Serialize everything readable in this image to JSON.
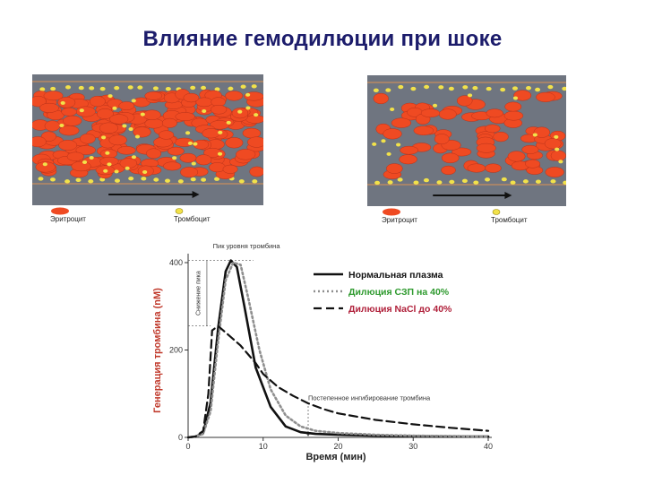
{
  "title": "Влияние гемодилюции при шоке",
  "vessels": [
    {
      "legend_rbc": "Эритроцит",
      "legend_plt": "Тромбоцит",
      "density": "high"
    },
    {
      "legend_rbc": "Эритроцит",
      "legend_plt": "Тромбоцит",
      "density": "low"
    }
  ],
  "colors": {
    "vessel_bg": "#6f7580",
    "vessel_wall": "#b98a63",
    "rbc": "#ef4a22",
    "platelet": "#f2e24a",
    "normal": "#111111",
    "ffp": "#8f8f8f",
    "nacl": "#111111",
    "ylabel": "#c0392b",
    "title": "#1c1c6b"
  },
  "chart_data": {
    "type": "line",
    "xlabel": "Время (мин)",
    "ylabel": "Генерация тромбина (nM)",
    "xlim": [
      0,
      40
    ],
    "ylim": [
      0,
      400
    ],
    "xticks": [
      0,
      10,
      20,
      30,
      40
    ],
    "yticks": [
      0,
      200,
      400
    ],
    "annotations": {
      "peak": "Пик уровня тромбина",
      "decrease": "Снижение пика",
      "inhibition": "Постепенное ингибирование тромбина"
    },
    "series": [
      {
        "name": "Нормальная плазма",
        "style": "solid",
        "x": [
          0,
          1,
          2,
          3,
          4,
          5,
          5.7,
          6.5,
          7.5,
          9,
          11,
          13,
          15,
          17,
          20,
          25,
          30,
          35,
          40
        ],
        "y": [
          0,
          2,
          10,
          80,
          250,
          380,
          405,
          390,
          300,
          160,
          70,
          25,
          12,
          8,
          6,
          4,
          3,
          2,
          2
        ]
      },
      {
        "name": "Дилюция СЗП на 40%",
        "style": "dotted",
        "x": [
          0,
          1,
          2,
          3,
          4,
          5,
          6,
          7,
          8,
          9.5,
          11,
          13,
          15,
          17,
          20,
          25,
          30,
          35,
          40
        ],
        "y": [
          0,
          2,
          8,
          60,
          220,
          360,
          400,
          395,
          320,
          200,
          110,
          50,
          25,
          15,
          10,
          6,
          4,
          3,
          2
        ]
      },
      {
        "name": "Дилюция  NaCl до 40%",
        "style": "dashed",
        "x": [
          0,
          1,
          2,
          2.7,
          3.2,
          4,
          5,
          6,
          7,
          8,
          9,
          10,
          12,
          14,
          16,
          18,
          20,
          25,
          30,
          35,
          40
        ],
        "y": [
          0,
          2,
          15,
          100,
          245,
          255,
          240,
          225,
          210,
          190,
          170,
          145,
          115,
          95,
          78,
          65,
          55,
          40,
          30,
          22,
          15
        ]
      }
    ]
  }
}
